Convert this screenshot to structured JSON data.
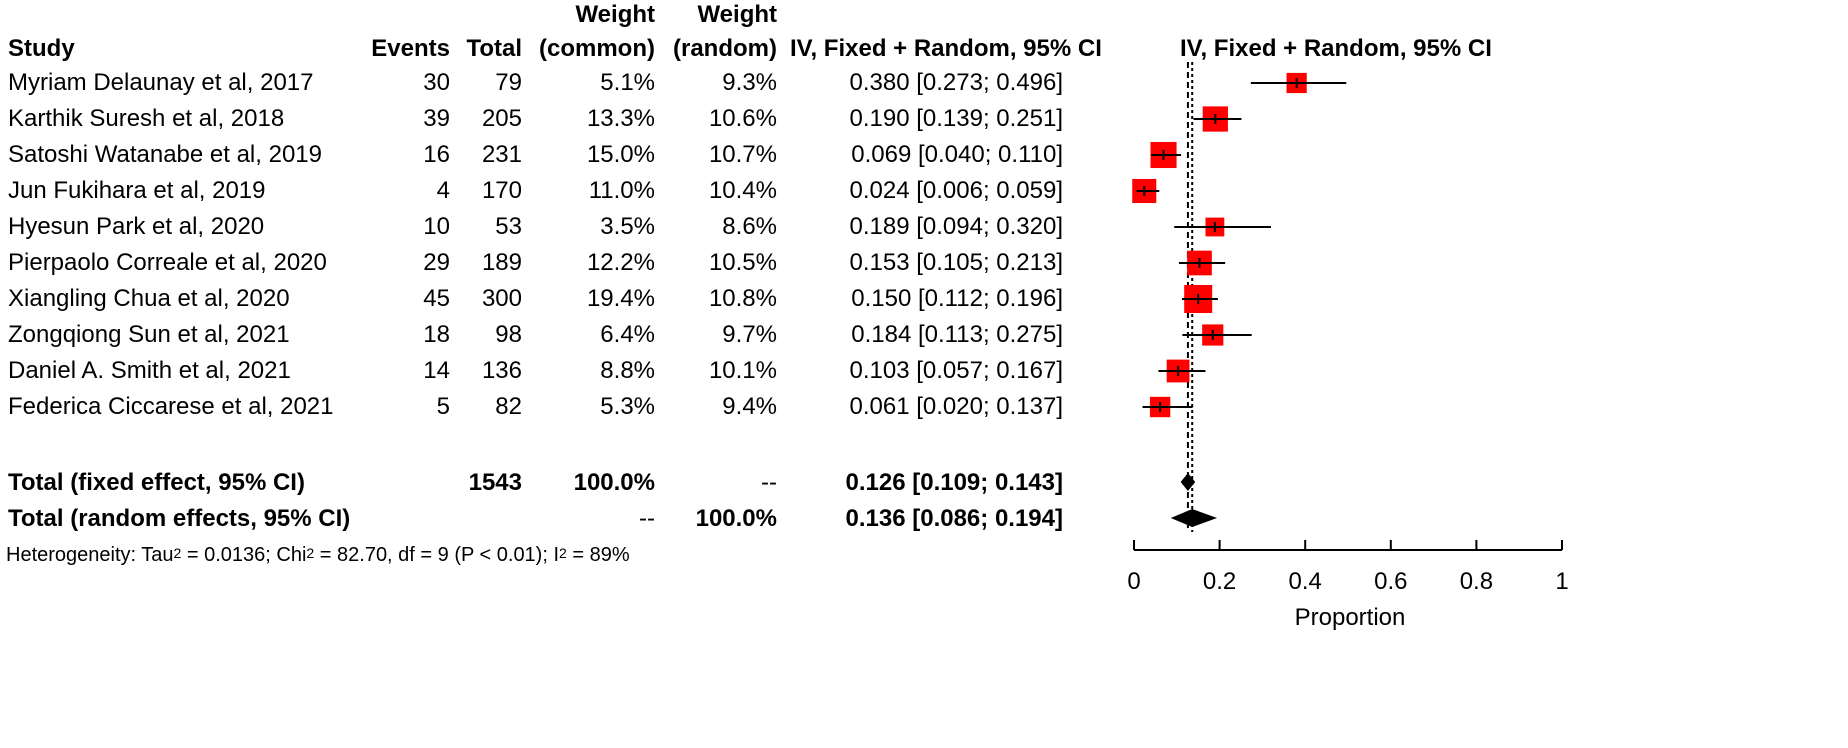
{
  "chart_data": {
    "type": "forest",
    "headers": {
      "study": "Study",
      "events": "Events",
      "total": "Total",
      "weight_common_top": "Weight",
      "weight_common_bottom": "(common)",
      "weight_random_top": "Weight",
      "weight_random_bottom": "(random)",
      "ci_text": "IV, Fixed + Random, 95% CI",
      "ci_plot": "IV, Fixed + Random, 95% CI"
    },
    "studies": [
      {
        "name": "Myriam Delaunay et al, 2017",
        "events": "30",
        "total": "79",
        "w_common": "5.1%",
        "w_random": "9.3%",
        "est": 0.38,
        "lo": 0.273,
        "hi": 0.496,
        "ci_text": "0.380 [0.273; 0.496]"
      },
      {
        "name": "Karthik Suresh et al, 2018",
        "events": "39",
        "total": "205",
        "w_common": "13.3%",
        "w_random": "10.6%",
        "est": 0.19,
        "lo": 0.139,
        "hi": 0.251,
        "ci_text": "0.190 [0.139; 0.251]"
      },
      {
        "name": "Satoshi Watanabe et al, 2019",
        "events": "16",
        "total": "231",
        "w_common": "15.0%",
        "w_random": "10.7%",
        "est": 0.069,
        "lo": 0.04,
        "hi": 0.11,
        "ci_text": "0.069 [0.040; 0.110]"
      },
      {
        "name": "Jun Fukihara et al, 2019",
        "events": "4",
        "total": "170",
        "w_common": "11.0%",
        "w_random": "10.4%",
        "est": 0.024,
        "lo": 0.006,
        "hi": 0.059,
        "ci_text": "0.024 [0.006; 0.059]"
      },
      {
        "name": "Hyesun Park et al, 2020",
        "events": "10",
        "total": "53",
        "w_common": "3.5%",
        "w_random": "8.6%",
        "est": 0.189,
        "lo": 0.094,
        "hi": 0.32,
        "ci_text": "0.189 [0.094; 0.320]"
      },
      {
        "name": "Pierpaolo Correale et al, 2020",
        "events": "29",
        "total": "189",
        "w_common": "12.2%",
        "w_random": "10.5%",
        "est": 0.153,
        "lo": 0.105,
        "hi": 0.213,
        "ci_text": "0.153 [0.105; 0.213]"
      },
      {
        "name": "Xiangling Chua et al, 2020",
        "events": "45",
        "total": "300",
        "w_common": "19.4%",
        "w_random": "10.8%",
        "est": 0.15,
        "lo": 0.112,
        "hi": 0.196,
        "ci_text": "0.150 [0.112; 0.196]"
      },
      {
        "name": "Zongqiong Sun et al, 2021",
        "events": "18",
        "total": "98",
        "w_common": "6.4%",
        "w_random": "9.7%",
        "est": 0.184,
        "lo": 0.113,
        "hi": 0.275,
        "ci_text": "0.184 [0.113; 0.275]"
      },
      {
        "name": "Daniel A. Smith et al, 2021",
        "events": "14",
        "total": "136",
        "w_common": "8.8%",
        "w_random": "10.1%",
        "est": 0.103,
        "lo": 0.057,
        "hi": 0.167,
        "ci_text": "0.103 [0.057; 0.167]"
      },
      {
        "name": "Federica Ciccarese et al, 2021",
        "events": "5",
        "total": "82",
        "w_common": "5.3%",
        "w_random": "9.4%",
        "est": 0.061,
        "lo": 0.02,
        "hi": 0.137,
        "ci_text": "0.061 [0.020; 0.137]"
      }
    ],
    "fixed": {
      "label": "Total (fixed effect, 95% CI)",
      "total": "1543",
      "w_common": "100.0%",
      "w_random": "--",
      "est": 0.126,
      "lo": 0.109,
      "hi": 0.143,
      "ci_text": "0.126 [0.109; 0.143]"
    },
    "random": {
      "label": "Total (random effects, 95% CI)",
      "w_common": "--",
      "w_random": "100.0%",
      "est": 0.136,
      "lo": 0.086,
      "hi": 0.194,
      "ci_text": "0.136 [0.086; 0.194]"
    },
    "heterogeneity": {
      "p1": "Heterogeneity: Tau",
      "s1": "2",
      "p2": " = 0.0136; Chi",
      "s2": "2",
      "p3": " = 82.70, df = 9 (P < 0.01); I",
      "s3": "2",
      "p4": " = 89%"
    },
    "xaxis": {
      "label": "Proportion",
      "range": [
        0,
        1
      ],
      "ticks": [
        0,
        0.2,
        0.4,
        0.6,
        0.8,
        1
      ],
      "tick_labels": [
        "0",
        "0.2",
        "0.4",
        "0.6",
        "0.8",
        "1"
      ]
    },
    "colors": {
      "square": "#ff0000",
      "line": "#000000",
      "diamond": "#000000"
    }
  }
}
